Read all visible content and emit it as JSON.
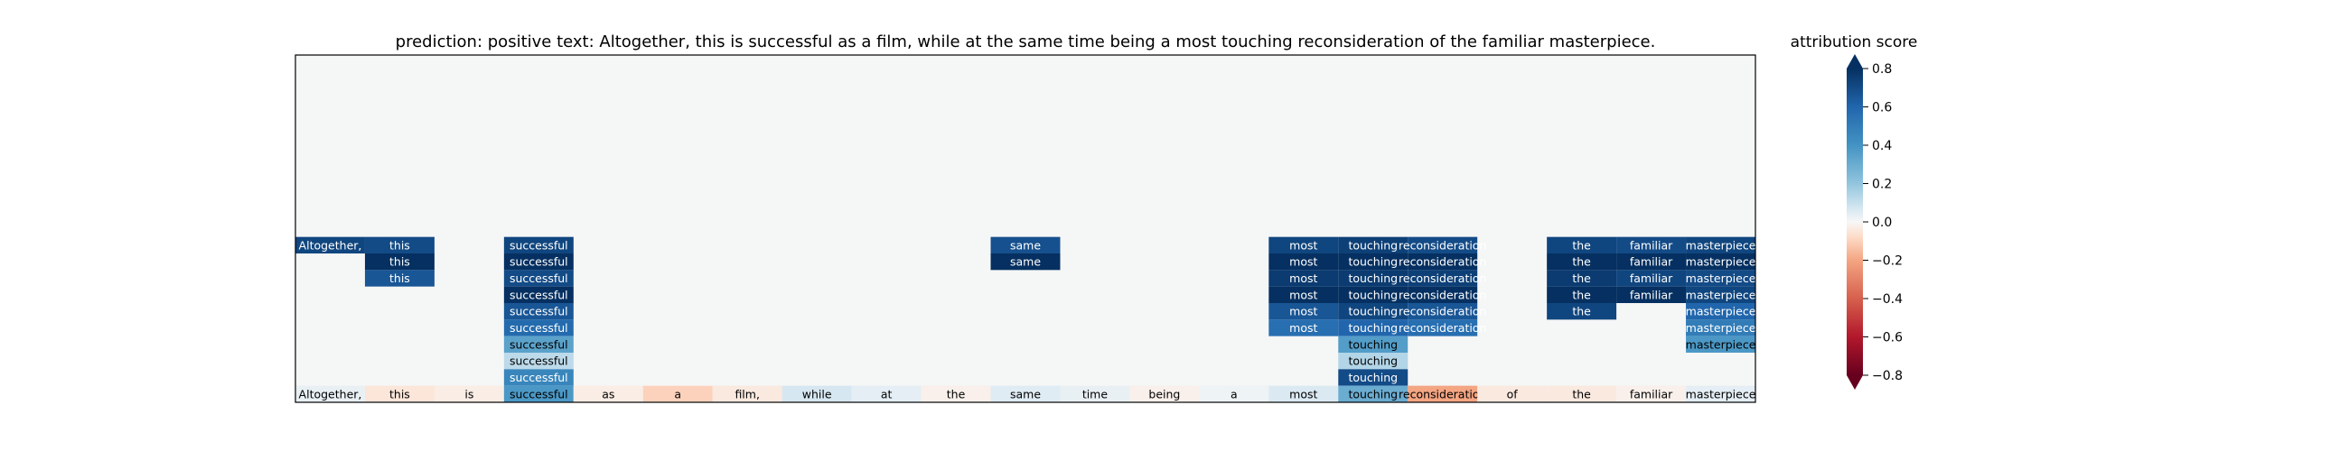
{
  "chart_data": {
    "type": "heatmap",
    "title": "prediction:  positive     text:  Altogether, this is successful as a film, while at the same time being a most touching reconsideration of the familiar masterpiece.",
    "tokens": [
      "Altogether,",
      "this",
      "is",
      "successful",
      "as",
      "a",
      "film,",
      "while",
      "at",
      "the",
      "same",
      "time",
      "being",
      "a",
      "most",
      "touching",
      "reconsideration",
      "of",
      "the",
      "familiar",
      "masterpiece"
    ],
    "row_labels_shown": false,
    "rows": [
      [],
      [],
      [],
      [],
      [],
      [],
      [],
      [],
      [],
      [],
      [],
      [
        [
          0,
          0.72
        ],
        [
          1,
          0.7
        ],
        [
          3,
          0.72
        ],
        [
          10,
          0.68
        ],
        [
          14,
          0.72
        ],
        [
          15,
          0.74
        ],
        [
          16,
          0.7
        ],
        [
          18,
          0.72
        ],
        [
          19,
          0.7
        ],
        [
          20,
          0.72
        ]
      ],
      [
        [
          1,
          0.86
        ],
        [
          3,
          0.86
        ],
        [
          10,
          0.88
        ],
        [
          14,
          0.86
        ],
        [
          15,
          0.84
        ],
        [
          16,
          0.8
        ],
        [
          18,
          0.84
        ],
        [
          19,
          0.8
        ],
        [
          20,
          0.82
        ]
      ],
      [
        [
          1,
          0.66
        ],
        [
          3,
          0.7
        ],
        [
          14,
          0.76
        ],
        [
          15,
          0.76
        ],
        [
          16,
          0.74
        ],
        [
          18,
          0.76
        ],
        [
          19,
          0.72
        ],
        [
          20,
          0.7
        ]
      ],
      [
        [
          3,
          0.92
        ],
        [
          14,
          0.9
        ],
        [
          15,
          0.86
        ],
        [
          16,
          0.8
        ],
        [
          18,
          0.9
        ],
        [
          19,
          0.86
        ],
        [
          20,
          0.72
        ]
      ],
      [
        [
          3,
          0.66
        ],
        [
          14,
          0.66
        ],
        [
          15,
          0.72
        ],
        [
          16,
          0.66
        ],
        [
          18,
          0.72
        ],
        [
          20,
          0.6
        ]
      ],
      [
        [
          3,
          0.58
        ],
        [
          14,
          0.56
        ],
        [
          15,
          0.6
        ],
        [
          16,
          0.56
        ],
        [
          20,
          0.5
        ]
      ],
      [
        [
          3,
          0.34
        ],
        [
          15,
          0.36
        ],
        [
          20,
          0.38
        ]
      ],
      [
        [
          3,
          0.12
        ],
        [
          15,
          0.14
        ]
      ],
      [
        [
          3,
          0.46
        ],
        [
          15,
          0.7
        ]
      ],
      [
        [
          0,
          0.03
        ],
        [
          1,
          -0.05
        ],
        [
          2,
          -0.03
        ],
        [
          3,
          0.38
        ],
        [
          4,
          -0.03
        ],
        [
          5,
          -0.1
        ],
        [
          6,
          -0.04
        ],
        [
          7,
          0.07
        ],
        [
          8,
          0.04
        ],
        [
          9,
          -0.02
        ],
        [
          10,
          0.05
        ],
        [
          11,
          0.03
        ],
        [
          12,
          -0.02
        ],
        [
          13,
          0.02
        ],
        [
          14,
          0.06
        ],
        [
          15,
          0.3
        ],
        [
          16,
          -0.2
        ],
        [
          17,
          -0.04
        ],
        [
          18,
          -0.04
        ],
        [
          19,
          -0.02
        ],
        [
          20,
          0.04
        ]
      ]
    ],
    "colorbar": {
      "label": "attribution score",
      "vmin": -0.8,
      "vmax": 0.8,
      "ticks": [
        0.8,
        0.6,
        0.4,
        0.2,
        0.0,
        -0.2,
        -0.4,
        -0.6,
        -0.8
      ],
      "tick_labels": [
        "0.8",
        "0.6",
        "0.4",
        "0.2",
        "0.0",
        "−0.2",
        "−0.4",
        "−0.6",
        "−0.8"
      ],
      "extend": "both",
      "colormap": "RdBu"
    },
    "background_color": "#f5f6f6"
  }
}
